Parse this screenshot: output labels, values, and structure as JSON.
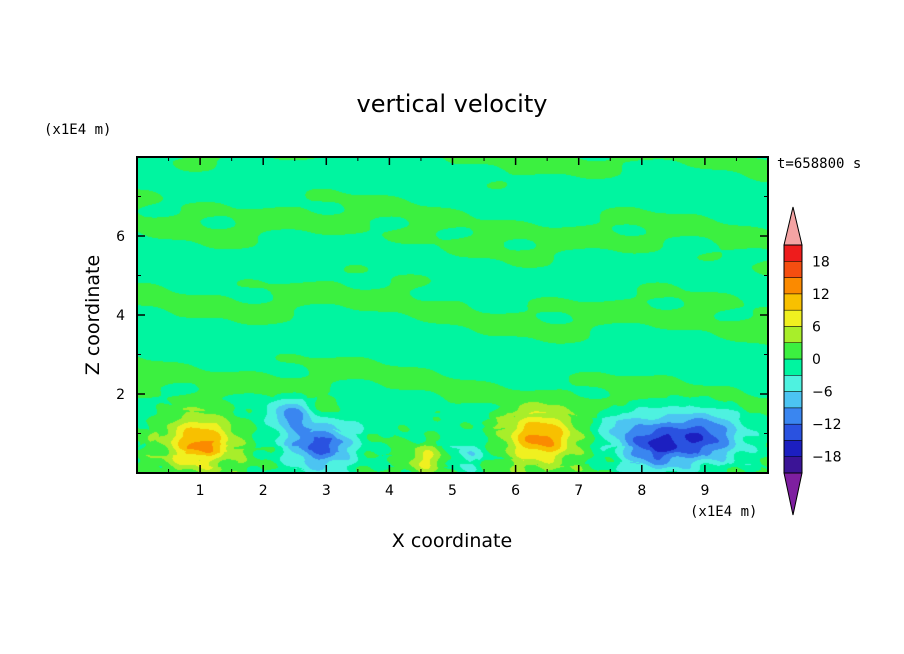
{
  "chart_data": {
    "type": "heatmap",
    "title": "vertical velocity",
    "xlabel": "X coordinate",
    "ylabel": "Z coordinate",
    "x_unit": "(x1E4 m)",
    "y_unit": "(x1E4 m)",
    "time_label": "t=658800 s",
    "xlim": [
      0,
      10
    ],
    "ylim": [
      0,
      8
    ],
    "x_ticks": [
      1,
      2,
      3,
      4,
      5,
      6,
      7,
      8,
      9
    ],
    "y_ticks": [
      2,
      4,
      6
    ],
    "colorbar": {
      "levels": [
        -21,
        -18,
        -15,
        -12,
        -9,
        -6,
        -3,
        0,
        3,
        6,
        9,
        12,
        15,
        18,
        21
      ],
      "tick_labels": [
        "-18",
        "-12",
        "-6",
        "0",
        "6",
        "12",
        "18"
      ],
      "colors": [
        "#7e1fa0",
        "#3b1496",
        "#1c1fc0",
        "#2a52e0",
        "#3a86f0",
        "#4cc4f2",
        "#4ef2e0",
        "#00f5a0",
        "#3cf040",
        "#a8ee2a",
        "#f0f020",
        "#f8c000",
        "#fb8a00",
        "#f54e10",
        "#ee1c1c",
        "#f4a3a3"
      ],
      "extend": "both"
    },
    "features": [
      {
        "x": 1.0,
        "z": 0.8,
        "peak": 13
      },
      {
        "x": 6.4,
        "z": 0.9,
        "peak": 14
      },
      {
        "x": 4.6,
        "z": 0.35,
        "peak": 6
      },
      {
        "x": 2.95,
        "z": 1.6,
        "peak": 4
      },
      {
        "x": 2.9,
        "z": 0.7,
        "peak": -13
      },
      {
        "x": 2.45,
        "z": 1.5,
        "peak": -9
      },
      {
        "x": 8.2,
        "z": 0.7,
        "peak": -14
      },
      {
        "x": 9.0,
        "z": 0.9,
        "peak": -12
      },
      {
        "x": 5.2,
        "z": 0.45,
        "peak": -5
      },
      {
        "x": 7.6,
        "z": 1.2,
        "peak": -4
      }
    ]
  }
}
